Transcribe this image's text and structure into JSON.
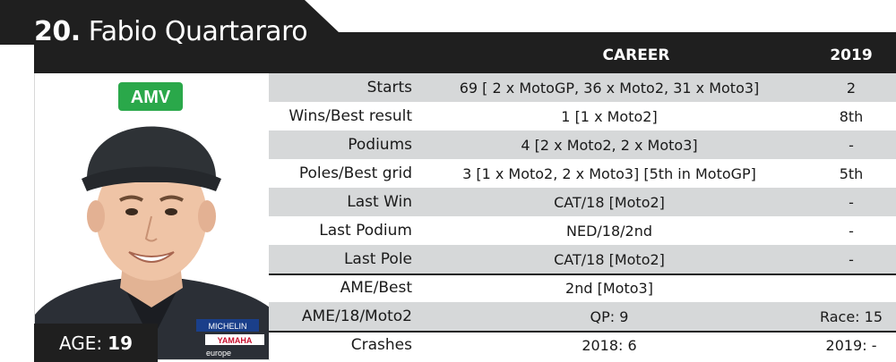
{
  "header": {
    "rider_number": "20.",
    "rider_name": "Fabio Quartararo",
    "col_career": "CAREER",
    "col_2019": "2019"
  },
  "age": {
    "label": "AGE:",
    "value": "19"
  },
  "photo": {
    "cap_logo_text": "AMV",
    "shirt_brands": [
      "MICHELIN",
      "YAMAHA",
      "europe"
    ]
  },
  "rows": [
    {
      "label": "Starts",
      "career": "69 [ 2 x MotoGP, 36 x Moto2, 31 x Moto3]",
      "y2019": "2"
    },
    {
      "label": "Wins/Best result",
      "career": "1 [1 x Moto2]",
      "y2019": "8th"
    },
    {
      "label": "Podiums",
      "career": "4 [2 x Moto2, 2 x Moto3]",
      "y2019": "-"
    },
    {
      "label": "Poles/Best grid",
      "career": "3 [1 x Moto2, 2 x Moto3] [5th in MotoGP]",
      "y2019": "5th"
    },
    {
      "label": "Last Win",
      "career": "CAT/18 [Moto2]",
      "y2019": "-"
    },
    {
      "label": "Last Podium",
      "career": "NED/18/2nd",
      "y2019": "-"
    },
    {
      "label": "Last Pole",
      "career": "CAT/18 [Moto2]",
      "y2019": "-"
    },
    {
      "label": "AME/Best",
      "career": "2nd [Moto3]",
      "y2019": ""
    },
    {
      "label": "AME/18/Moto2",
      "career": "QP: 9",
      "y2019": "Race: 15"
    },
    {
      "label": "Crashes",
      "career": "2018: 6",
      "y2019": "2019: -"
    }
  ],
  "colors": {
    "bar": "#1f1f1f",
    "row_grey": "#d6d8d9",
    "cap_green": "#2aa84a"
  }
}
